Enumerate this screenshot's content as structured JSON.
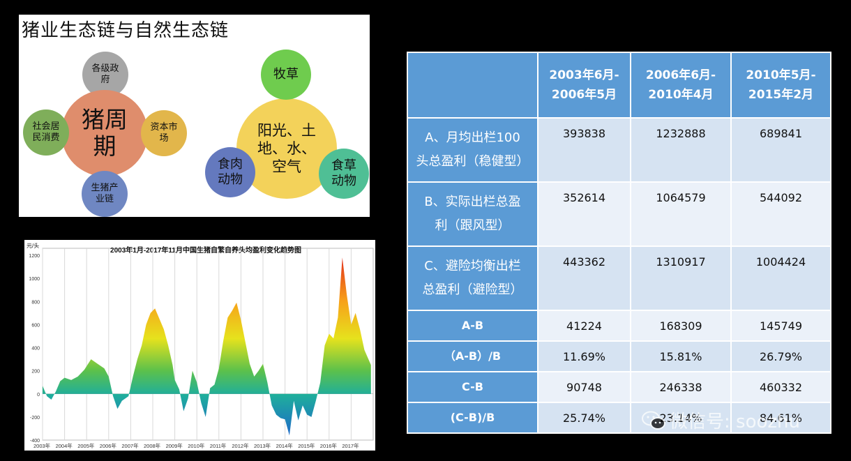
{
  "diagram": {
    "title": "猪业生态链与自然生态链",
    "pig_cluster": {
      "center": "猪周期",
      "top": "各级政府",
      "left": "社会居民消费",
      "right": "资本市场",
      "bottom": "生猪产业链"
    },
    "nature_cluster": {
      "center": "阳光、土地、水、空气",
      "top": "牧草",
      "left": "食肉动物",
      "right": "食草动物"
    }
  },
  "chart_data": {
    "type": "area",
    "title": "2003年1月-2017年11月中国生猪自繁自养头均盈利变化趋势图",
    "ylabel": "元/头",
    "xlabel": "",
    "ylim": [
      -400,
      1200
    ],
    "y_ticks": [
      "1200",
      "1000",
      "800",
      "600",
      "400",
      "200",
      "0",
      "-200",
      "-400"
    ],
    "x_ticks": [
      "2003年",
      "2004年",
      "2005年",
      "2006年",
      "2007年",
      "2008年",
      "2009年",
      "2010年",
      "2011年",
      "2012年",
      "2013年",
      "2014年",
      "2015年",
      "2016年",
      "2017年"
    ],
    "grid": "vertical",
    "x": [
      2003.0,
      2003.2,
      2003.4,
      2003.6,
      2003.8,
      2004.0,
      2004.3,
      2004.6,
      2004.9,
      2005.2,
      2005.5,
      2005.8,
      2006.0,
      2006.2,
      2006.4,
      2006.6,
      2006.9,
      2007.1,
      2007.3,
      2007.5,
      2007.7,
      2007.9,
      2008.1,
      2008.3,
      2008.5,
      2008.7,
      2008.9,
      2009.0,
      2009.2,
      2009.4,
      2009.6,
      2009.8,
      2010.0,
      2010.2,
      2010.4,
      2010.6,
      2010.8,
      2011.0,
      2011.2,
      2011.4,
      2011.6,
      2011.8,
      2012.0,
      2012.2,
      2012.4,
      2012.6,
      2012.8,
      2013.0,
      2013.2,
      2013.4,
      2013.6,
      2013.8,
      2014.0,
      2014.2,
      2014.4,
      2014.6,
      2014.8,
      2015.0,
      2015.2,
      2015.4,
      2015.6,
      2015.8,
      2016.0,
      2016.2,
      2016.4,
      2016.6,
      2016.8,
      2017.0,
      2017.2,
      2017.4,
      2017.6,
      2017.9
    ],
    "y": [
      70,
      -20,
      -50,
      20,
      110,
      140,
      120,
      150,
      210,
      300,
      260,
      220,
      150,
      -20,
      -130,
      -60,
      -20,
      150,
      300,
      420,
      600,
      700,
      740,
      650,
      560,
      420,
      250,
      120,
      40,
      -150,
      -40,
      200,
      100,
      -80,
      -200,
      50,
      80,
      220,
      460,
      660,
      720,
      790,
      640,
      450,
      260,
      150,
      200,
      260,
      100,
      -100,
      -180,
      -210,
      -220,
      -360,
      -60,
      -230,
      -100,
      -180,
      -200,
      -60,
      100,
      420,
      520,
      480,
      660,
      1180,
      860,
      600,
      700,
      560,
      380,
      250
    ]
  },
  "table": {
    "headers": [
      "",
      "2003年6月-\n2006年5月",
      "2006年6月-\n2010年4月",
      "2010年5月-\n2015年2月"
    ],
    "rows": [
      {
        "label": "A、月均出栏100\n头总盈利（稳健型）",
        "values": [
          "393838",
          "1232888",
          "689841"
        ]
      },
      {
        "label": "B、实际出栏总盈\n利（跟风型）",
        "values": [
          "352614",
          "1064579",
          "544092"
        ]
      },
      {
        "label": "C、避险均衡出栏\n总盈利（避险型）",
        "values": [
          "443362",
          "1310917",
          "1004424"
        ]
      },
      {
        "label": "A-B",
        "values": [
          "41224",
          "168309",
          "145749"
        ]
      },
      {
        "label": "（A-B）/B",
        "values": [
          "11.69%",
          "15.81%",
          "26.79%"
        ]
      },
      {
        "label": "C-B",
        "values": [
          "90748",
          "246338",
          "460332"
        ]
      },
      {
        "label": "(C-B)/B",
        "values": [
          "25.74%",
          "23.14%",
          "84.61%"
        ]
      }
    ]
  },
  "watermark": {
    "text": "微信号: soozhu",
    "icon": "wechat-icon"
  }
}
